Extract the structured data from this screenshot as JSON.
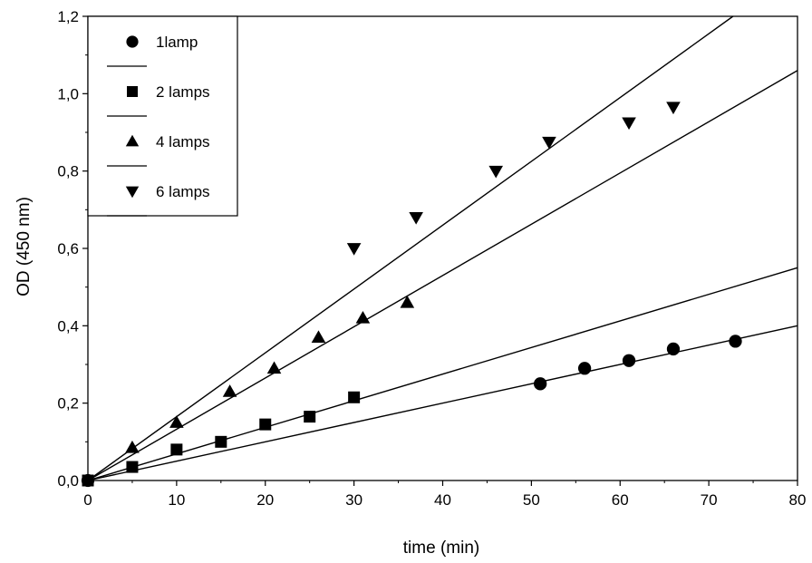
{
  "chart_data": {
    "type": "scatter",
    "title": "",
    "xlabel": "time (min)",
    "ylabel": "OD (450 nm)",
    "xlim": [
      0,
      80
    ],
    "ylim": [
      0,
      1.2
    ],
    "x_ticks": [
      "0",
      "10",
      "20",
      "30",
      "40",
      "50",
      "60",
      "70",
      "80"
    ],
    "x_tick_values": [
      0,
      10,
      20,
      30,
      40,
      50,
      60,
      70,
      80
    ],
    "y_ticks": [
      "0,0",
      "0,2",
      "0,4",
      "0,6",
      "0,8",
      "1,0",
      "1,2"
    ],
    "y_tick_values": [
      0,
      0.2,
      0.4,
      0.6,
      0.8,
      1.0,
      1.2
    ],
    "grid": false,
    "legend_position": "top-left",
    "series": [
      {
        "name": "1lamp",
        "marker": "circle",
        "x": [
          0,
          51,
          56,
          61,
          66,
          73
        ],
        "y": [
          0,
          0.25,
          0.29,
          0.31,
          0.34,
          0.36
        ],
        "fit_slope": 0.005
      },
      {
        "name": "2 lamps",
        "marker": "square",
        "x": [
          0,
          5,
          10,
          15,
          20,
          25,
          30
        ],
        "y": [
          0,
          0.035,
          0.08,
          0.1,
          0.145,
          0.165,
          0.215
        ],
        "fit_slope": 0.006875
      },
      {
        "name": "4 lamps",
        "marker": "triangle-up",
        "x": [
          5,
          10,
          16,
          21,
          26,
          31,
          36
        ],
        "y": [
          0.085,
          0.15,
          0.23,
          0.29,
          0.37,
          0.42,
          0.46
        ],
        "fit_slope": 0.01325
      },
      {
        "name": "6 lamps",
        "marker": "triangle-down",
        "x": [
          30,
          37,
          46,
          52,
          61,
          66
        ],
        "y": [
          0.6,
          0.68,
          0.8,
          0.875,
          0.925,
          0.965
        ],
        "fit_slope": 0.0165
      }
    ]
  }
}
